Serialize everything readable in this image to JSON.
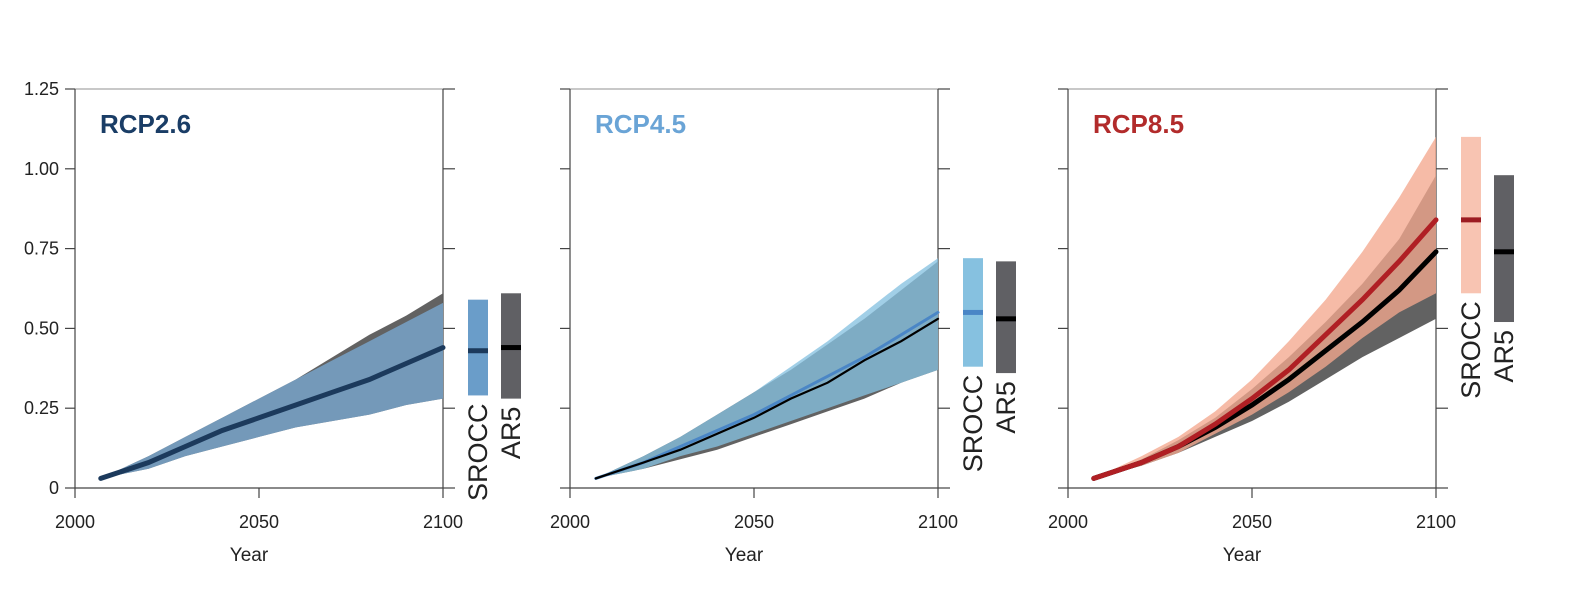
{
  "chart_data": [
    {
      "type": "area",
      "title": "RCP2.6",
      "title_color": "#1a3d66",
      "xlabel": "Year",
      "ylabel": "",
      "xlim": [
        2000,
        2100
      ],
      "ylim": [
        0,
        1.25
      ],
      "x_ticks": [
        "2000",
        "2050",
        "2100"
      ],
      "y_ticks": [
        "0",
        "0.25",
        "0.50",
        "0.75",
        "1.00",
        "1.25"
      ],
      "x": [
        2007,
        2020,
        2030,
        2040,
        2050,
        2060,
        2070,
        2080,
        2090,
        2100
      ],
      "series": [
        {
          "color": "#1c3a5c",
          "band_color": "#7aa9d2",
          "mean": [
            0.03,
            0.08,
            0.13,
            0.18,
            0.22,
            0.26,
            0.3,
            0.34,
            0.39,
            0.44
          ],
          "lower": [
            0.03,
            0.06,
            0.1,
            0.13,
            0.16,
            0.19,
            0.21,
            0.23,
            0.26,
            0.28
          ],
          "upper": [
            0.03,
            0.1,
            0.16,
            0.22,
            0.28,
            0.34,
            0.4,
            0.46,
            0.52,
            0.58
          ]
        },
        {
          "color": "#000000",
          "band_color": "#5a5a5a",
          "mean": [
            0.03,
            0.08,
            0.13,
            0.18,
            0.22,
            0.26,
            0.3,
            0.34,
            0.39,
            0.44
          ],
          "lower": [
            0.03,
            0.06,
            0.1,
            0.13,
            0.16,
            0.19,
            0.21,
            0.23,
            0.26,
            0.28
          ],
          "upper": [
            0.03,
            0.1,
            0.16,
            0.22,
            0.28,
            0.34,
            0.41,
            0.48,
            0.54,
            0.61
          ]
        }
      ],
      "range_bars": [
        {
          "label": "SROCC",
          "low": 0.29,
          "median": 0.43,
          "high": 0.59,
          "color": "#6a9dc9",
          "median_color": "#1c3a5c"
        },
        {
          "label": "AR5",
          "low": 0.28,
          "median": 0.44,
          "high": 0.61,
          "color": "#606064",
          "median_color": "#000000"
        }
      ]
    },
    {
      "type": "area",
      "title": "RCP4.5",
      "title_color": "#6aa4d6",
      "xlabel": "Year",
      "ylabel": "",
      "xlim": [
        2000,
        2100
      ],
      "ylim": [
        0,
        1.25
      ],
      "x_ticks": [
        "2000",
        "2050",
        "2100"
      ],
      "y_ticks": [
        "0",
        "0.25",
        "0.50",
        "0.75",
        "1.00",
        "1.25"
      ],
      "x": [
        2007,
        2020,
        2030,
        2040,
        2050,
        2060,
        2070,
        2080,
        2090,
        2100
      ],
      "series": [
        {
          "color": "#4a86c6",
          "band_color": "#86c1e0",
          "mean": [
            0.03,
            0.08,
            0.13,
            0.18,
            0.23,
            0.29,
            0.35,
            0.41,
            0.48,
            0.55
          ],
          "lower": [
            0.03,
            0.06,
            0.1,
            0.13,
            0.17,
            0.21,
            0.25,
            0.29,
            0.33,
            0.37
          ],
          "upper": [
            0.03,
            0.1,
            0.16,
            0.23,
            0.3,
            0.38,
            0.46,
            0.55,
            0.64,
            0.72
          ]
        },
        {
          "color": "#000000",
          "band_color": "#5a5a5a",
          "mean": [
            0.03,
            0.08,
            0.12,
            0.17,
            0.22,
            0.28,
            0.33,
            0.4,
            0.46,
            0.53
          ],
          "lower": [
            0.03,
            0.06,
            0.09,
            0.12,
            0.16,
            0.2,
            0.24,
            0.28,
            0.33,
            0.37
          ],
          "upper": [
            0.03,
            0.1,
            0.16,
            0.23,
            0.3,
            0.37,
            0.45,
            0.53,
            0.62,
            0.71
          ]
        }
      ],
      "range_bars": [
        {
          "label": "SROCC",
          "low": 0.38,
          "median": 0.55,
          "high": 0.72,
          "color": "#86c1e0",
          "median_color": "#4a86c6"
        },
        {
          "label": "AR5",
          "low": 0.36,
          "median": 0.53,
          "high": 0.71,
          "color": "#606064",
          "median_color": "#000000"
        }
      ]
    },
    {
      "type": "area",
      "title": "RCP8.5",
      "title_color": "#b22b2b",
      "xlabel": "Year",
      "ylabel": "",
      "xlim": [
        2000,
        2100
      ],
      "ylim": [
        0,
        1.25
      ],
      "x_ticks": [
        "2000",
        "2050",
        "2100"
      ],
      "y_ticks": [
        "0",
        "0.25",
        "0.50",
        "0.75",
        "1.00",
        "1.25"
      ],
      "x": [
        2007,
        2020,
        2030,
        2040,
        2050,
        2060,
        2070,
        2080,
        2090,
        2100
      ],
      "series": [
        {
          "color": "#b01f24",
          "band_color": "#f4a88e",
          "mean": [
            0.03,
            0.08,
            0.13,
            0.2,
            0.28,
            0.37,
            0.48,
            0.59,
            0.71,
            0.84
          ],
          "lower": [
            0.03,
            0.07,
            0.11,
            0.17,
            0.23,
            0.3,
            0.38,
            0.47,
            0.55,
            0.61
          ],
          "upper": [
            0.03,
            0.1,
            0.16,
            0.24,
            0.34,
            0.46,
            0.59,
            0.74,
            0.91,
            1.1
          ]
        },
        {
          "color": "#000000",
          "band_color": "#5a5a5a",
          "mean": [
            0.03,
            0.08,
            0.13,
            0.19,
            0.26,
            0.34,
            0.43,
            0.52,
            0.62,
            0.74
          ],
          "lower": [
            0.03,
            0.07,
            0.11,
            0.16,
            0.21,
            0.27,
            0.34,
            0.41,
            0.47,
            0.53
          ],
          "upper": [
            0.03,
            0.09,
            0.15,
            0.22,
            0.31,
            0.41,
            0.52,
            0.64,
            0.78,
            0.98
          ]
        }
      ],
      "range_bars": [
        {
          "label": "SROCC",
          "low": 0.61,
          "median": 0.84,
          "high": 1.1,
          "color": "#f8c4b2",
          "median_color": "#9c1c22"
        },
        {
          "label": "AR5",
          "low": 0.52,
          "median": 0.74,
          "high": 0.98,
          "color": "#606064",
          "median_color": "#000000"
        }
      ]
    }
  ]
}
